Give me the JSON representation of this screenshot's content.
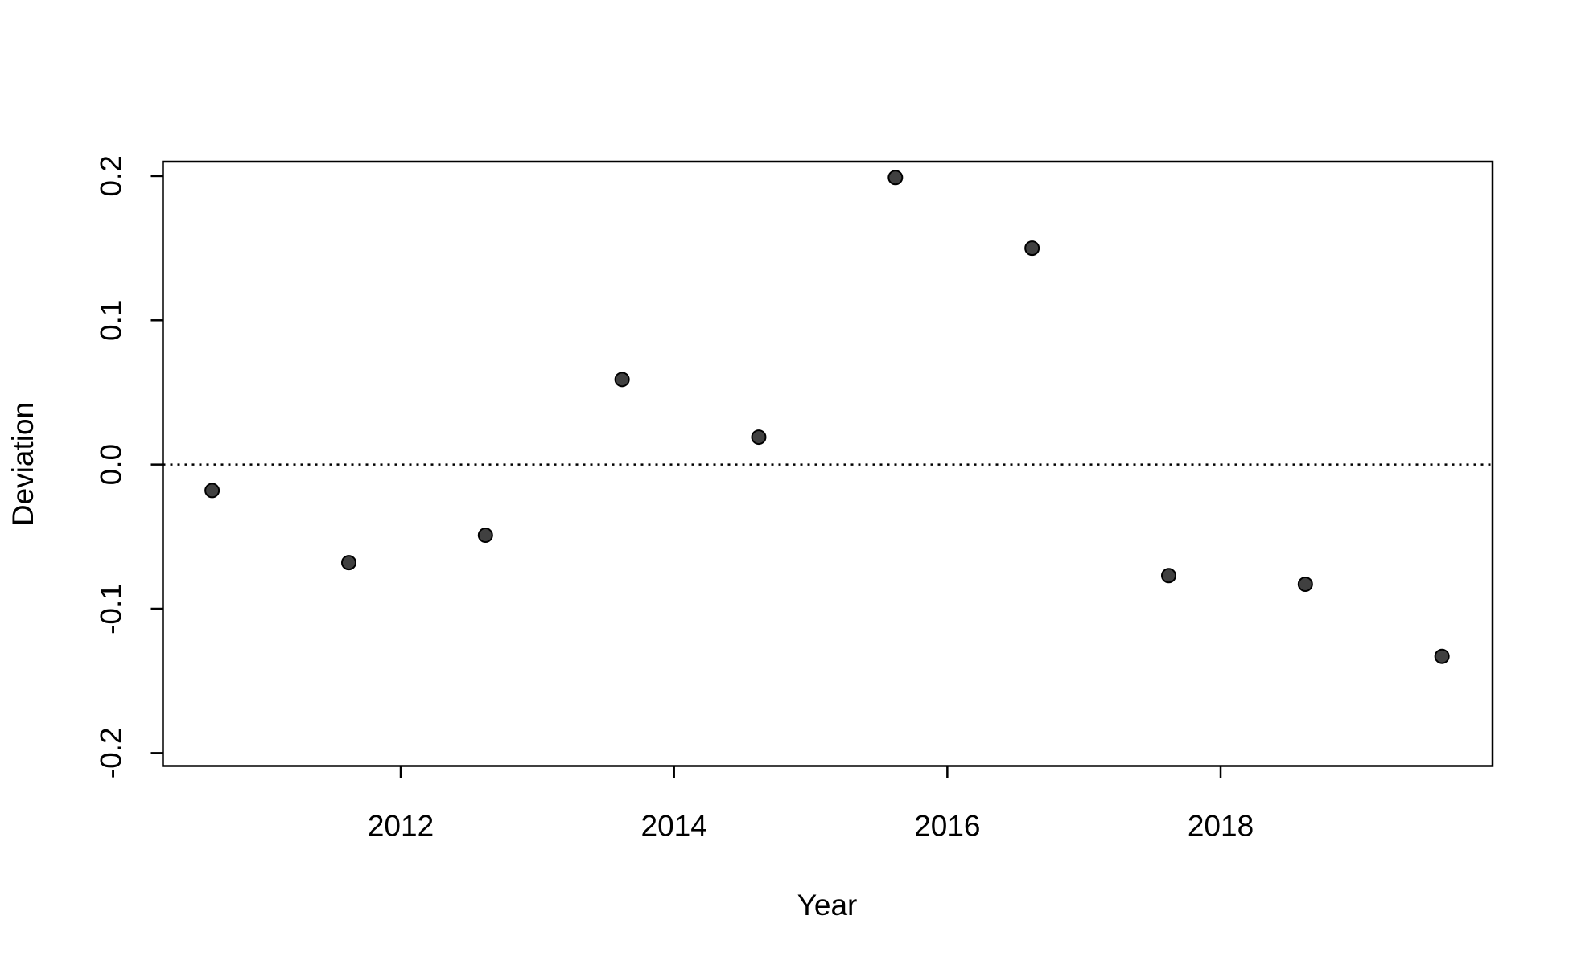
{
  "chart_data": {
    "type": "scatter",
    "x_label": "Year",
    "y_label": "Deviation",
    "x": [
      2010.62,
      2011.62,
      2012.62,
      2013.62,
      2014.62,
      2015.62,
      2016.62,
      2017.62,
      2018.62,
      2019.62
    ],
    "values": [
      -0.018,
      -0.068,
      -0.049,
      0.059,
      0.019,
      0.199,
      0.15,
      -0.077,
      -0.083,
      -0.133
    ],
    "color": "#404040",
    "xlim": [
      2010.26,
      2019.99
    ],
    "xticks": [
      2012,
      2014,
      2016,
      2018
    ],
    "ylim": [
      -0.209,
      0.21
    ],
    "yticks": [
      -0.2,
      -0.1,
      {
        "value": 0,
        "label": "0.0"
      },
      0.1,
      0.2
    ],
    "reference_line": 0
  }
}
